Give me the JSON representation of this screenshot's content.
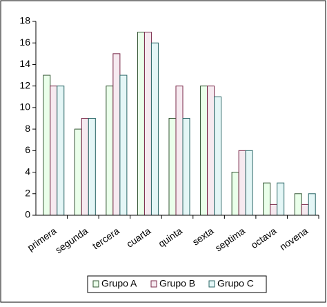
{
  "chart_data": {
    "type": "bar",
    "categories": [
      "primera",
      "segunda",
      "tercera",
      "cuarta",
      "quinta",
      "sexta",
      "septima",
      "octava",
      "novena"
    ],
    "series": [
      {
        "name": "Grupo A",
        "color": "#eaffea",
        "values": [
          13,
          8,
          12,
          17,
          9,
          12,
          4,
          3,
          2
        ]
      },
      {
        "name": "Grupo B",
        "color": "#f6eaf0",
        "values": [
          12,
          9,
          15,
          17,
          12,
          12,
          6,
          1,
          1
        ]
      },
      {
        "name": "Grupo C",
        "color": "#e4f6f6",
        "values": [
          12,
          9,
          13,
          16,
          9,
          11,
          6,
          3,
          2
        ]
      }
    ],
    "ylim": [
      0,
      18
    ],
    "yticks": [
      0,
      2,
      4,
      6,
      8,
      10,
      12,
      14,
      16,
      18
    ],
    "grid": false,
    "legend": "bottom"
  }
}
